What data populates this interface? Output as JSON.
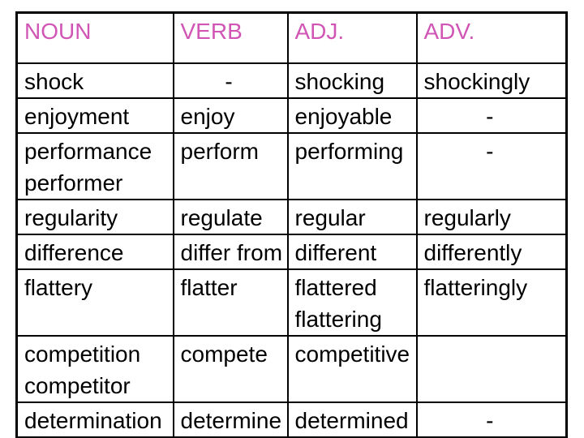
{
  "page": {
    "background_color": "#ffffff",
    "border_color": "#000000"
  },
  "table": {
    "name": "word-forms-table",
    "header_color": "#d055b5",
    "headers": [
      "NOUN",
      "VERB",
      "ADJ.",
      "ADV."
    ],
    "rows": [
      {
        "cells": [
          {
            "lines": [
              "shock"
            ]
          },
          {
            "lines": [
              "-"
            ]
          },
          {
            "lines": [
              "shocking"
            ]
          },
          {
            "lines": [
              "shockingly"
            ]
          }
        ]
      },
      {
        "cells": [
          {
            "lines": [
              "enjoyment"
            ]
          },
          {
            "lines": [
              "enjoy"
            ]
          },
          {
            "lines": [
              "enjoyable"
            ]
          },
          {
            "lines": [
              "-"
            ]
          }
        ]
      },
      {
        "cells": [
          {
            "lines": [
              "performance",
              "performer"
            ]
          },
          {
            "lines": [
              "perform"
            ]
          },
          {
            "lines": [
              "performing"
            ]
          },
          {
            "lines": [
              "-"
            ]
          }
        ]
      },
      {
        "cells": [
          {
            "lines": [
              "regularity"
            ]
          },
          {
            "lines": [
              "regulate"
            ]
          },
          {
            "lines": [
              "regular"
            ]
          },
          {
            "lines": [
              "regularly"
            ]
          }
        ]
      },
      {
        "cells": [
          {
            "lines": [
              "difference"
            ]
          },
          {
            "lines": [
              "differ from"
            ]
          },
          {
            "lines": [
              "different"
            ]
          },
          {
            "lines": [
              "differently"
            ]
          }
        ]
      },
      {
        "cells": [
          {
            "lines": [
              "flattery"
            ]
          },
          {
            "lines": [
              "flatter"
            ]
          },
          {
            "lines": [
              "flattered",
              "flattering"
            ]
          },
          {
            "lines": [
              "flatteringly"
            ]
          }
        ]
      },
      {
        "cells": [
          {
            "lines": [
              "competition",
              "competitor"
            ]
          },
          {
            "lines": [
              "compete"
            ]
          },
          {
            "lines": [
              "competitive"
            ]
          },
          {
            "lines": []
          }
        ]
      },
      {
        "cells": [
          {
            "lines": [
              "determination"
            ]
          },
          {
            "lines": [
              "determine"
            ]
          },
          {
            "lines": [
              "determined"
            ]
          },
          {
            "lines": [
              "-"
            ]
          }
        ]
      }
    ]
  }
}
